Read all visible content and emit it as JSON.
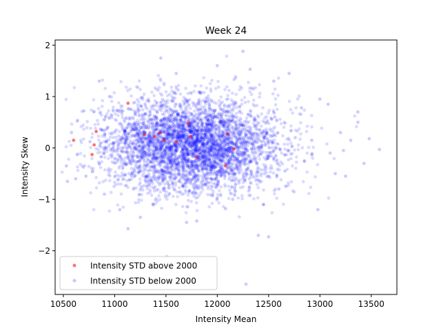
{
  "chart_data": {
    "type": "scatter",
    "title": "Week 24",
    "xlabel": "Intensity Mean",
    "ylabel": "Intensity Skew",
    "xlim": [
      10420,
      13750
    ],
    "ylim": [
      -2.85,
      2.1
    ],
    "xticks": [
      10500,
      11000,
      11500,
      12000,
      12500,
      13000,
      13500
    ],
    "yticks": [
      -2,
      -1,
      0,
      1,
      2
    ],
    "grid": false,
    "legend_position": "lower-left",
    "series": [
      {
        "name": "Intensity STD above 2000",
        "color": "#ff0000",
        "opacity": 0.55,
        "points": [
          [
            10600,
            0.15
          ],
          [
            10780,
            -0.13
          ],
          [
            10800,
            0.06
          ],
          [
            10820,
            0.32
          ],
          [
            11130,
            0.87
          ],
          [
            11290,
            0.26
          ],
          [
            11390,
            0.22
          ],
          [
            11440,
            0.29
          ],
          [
            11480,
            0.15
          ],
          [
            11600,
            0.12
          ],
          [
            11720,
            0.48
          ],
          [
            11740,
            0.22
          ],
          [
            11800,
            -0.18
          ],
          [
            12080,
            -0.35
          ],
          [
            12160,
            -0.02
          ],
          [
            12100,
            0.27
          ]
        ]
      },
      {
        "name": "Intensity STD below 2000",
        "color": "#0000ff",
        "opacity": 0.14,
        "distribution": {
          "count": 4200,
          "mean_x": 11750,
          "sd_x": 420,
          "mean_y": 0.05,
          "sd_y": 0.45
        },
        "points": [
          [
            10530,
            -0.35
          ],
          [
            10540,
            -0.65
          ],
          [
            10580,
            0.3
          ],
          [
            10620,
            -0.6
          ],
          [
            10700,
            0.72
          ],
          [
            10720,
            -0.55
          ],
          [
            10760,
            0.12
          ],
          [
            10850,
            1.3
          ],
          [
            11130,
            -1.57
          ],
          [
            11450,
            1.75
          ],
          [
            11700,
            -1.45
          ],
          [
            11800,
            -1.42
          ],
          [
            12080,
            -1.18
          ],
          [
            12250,
            1.88
          ],
          [
            12280,
            -2.65
          ],
          [
            12320,
            1.53
          ],
          [
            12400,
            -1.7
          ],
          [
            12500,
            -1.73
          ],
          [
            12550,
            1.3
          ],
          [
            12600,
            -0.8
          ],
          [
            12700,
            1.45
          ],
          [
            12820,
            0.78
          ],
          [
            12850,
            -0.25
          ],
          [
            12920,
            0.15
          ],
          [
            12980,
            -1.2
          ],
          [
            13000,
            0.95
          ],
          [
            13080,
            0.85
          ],
          [
            13100,
            -0.1
          ],
          [
            13150,
            -0.5
          ],
          [
            13200,
            0.3
          ],
          [
            13230,
            -0.05
          ],
          [
            13250,
            -0.55
          ],
          [
            13300,
            0.15
          ],
          [
            13370,
            0.5
          ],
          [
            13370,
            0.7
          ],
          [
            13430,
            -0.3
          ],
          [
            13480,
            0.18
          ],
          [
            13580,
            -0.03
          ],
          [
            12450,
            -1.1
          ],
          [
            12560,
            0.6
          ],
          [
            12660,
            -0.45
          ],
          [
            12760,
            0.2
          ],
          [
            10900,
            -0.9
          ],
          [
            10950,
            1.0
          ],
          [
            11050,
            -1.2
          ],
          [
            11250,
            -1.35
          ],
          [
            12000,
            1.6
          ],
          [
            11600,
            1.45
          ],
          [
            12150,
            -1.0
          ],
          [
            12350,
            1.15
          ]
        ]
      }
    ]
  }
}
